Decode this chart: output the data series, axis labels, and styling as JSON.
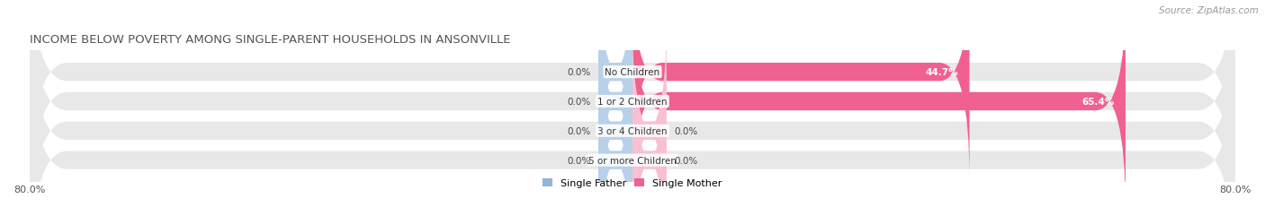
{
  "title": "INCOME BELOW POVERTY AMONG SINGLE-PARENT HOUSEHOLDS IN ANSONVILLE",
  "source": "Source: ZipAtlas.com",
  "categories": [
    "No Children",
    "1 or 2 Children",
    "3 or 4 Children",
    "5 or more Children"
  ],
  "single_father": [
    0.0,
    0.0,
    0.0,
    0.0
  ],
  "single_mother": [
    44.7,
    65.4,
    0.0,
    0.0
  ],
  "father_color": "#92b4d7",
  "mother_color_strong": "#f06090",
  "mother_color_light": "#f9c0d4",
  "father_color_light": "#b8d0e8",
  "axis_min": -80.0,
  "axis_max": 80.0,
  "bg_bar_color": "#e8e8e8",
  "title_fontsize": 9.5,
  "source_fontsize": 7.5,
  "label_fontsize": 7.5,
  "tick_fontsize": 8,
  "legend_fontsize": 8,
  "bar_height": 0.62,
  "min_stub": 4.5
}
